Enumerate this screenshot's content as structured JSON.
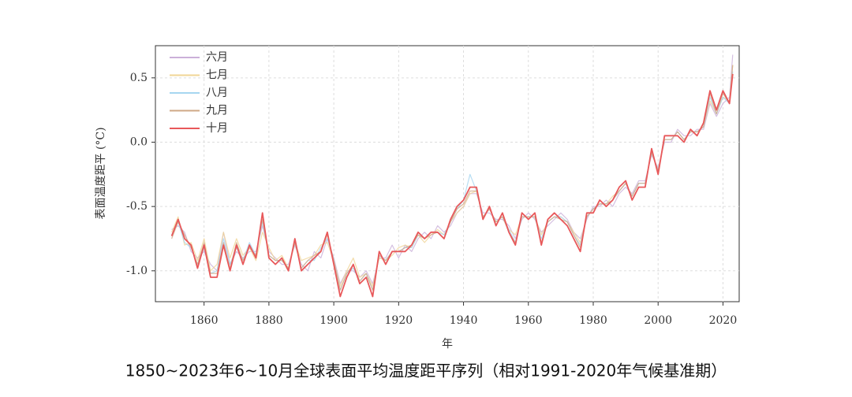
{
  "chart_data": {
    "type": "line",
    "title": "1850~2023年6~10月全球表面平均温度距平序列（相对1991-2020年气候基准期）",
    "xlabel": "年",
    "ylabel": "表面温度距平 (°C)",
    "xlim": [
      1845,
      2025
    ],
    "ylim": [
      -1.24,
      0.75
    ],
    "xticks": [
      1860,
      1880,
      1900,
      1920,
      1940,
      1960,
      1980,
      2000,
      2020
    ],
    "yticks": [
      {
        "value": -1,
        "label": "-1.0"
      },
      -0.5,
      {
        "value": 0,
        "label": "0.0"
      },
      0.5
    ],
    "grid": true,
    "legend": "upper left",
    "x": [
      1850,
      1852,
      1854,
      1856,
      1858,
      1860,
      1862,
      1864,
      1866,
      1868,
      1870,
      1872,
      1874,
      1876,
      1878,
      1880,
      1882,
      1884,
      1886,
      1888,
      1890,
      1892,
      1894,
      1896,
      1898,
      1900,
      1902,
      1904,
      1906,
      1908,
      1910,
      1912,
      1914,
      1916,
      1918,
      1920,
      1922,
      1924,
      1926,
      1928,
      1930,
      1932,
      1934,
      1936,
      1938,
      1940,
      1942,
      1944,
      1946,
      1948,
      1950,
      1952,
      1954,
      1956,
      1958,
      1960,
      1962,
      1964,
      1966,
      1968,
      1970,
      1972,
      1974,
      1976,
      1978,
      1980,
      1982,
      1984,
      1986,
      1988,
      1990,
      1992,
      1994,
      1996,
      1998,
      2000,
      2002,
      2004,
      2006,
      2008,
      2010,
      2012,
      2014,
      2016,
      2018,
      2020,
      2022,
      2023
    ],
    "series": [
      {
        "name": "六月",
        "color": "#cbb0d9",
        "values": [
          -0.68,
          -0.65,
          -0.7,
          -0.85,
          -0.9,
          -0.85,
          -0.95,
          -1.0,
          -0.7,
          -0.95,
          -0.85,
          -0.9,
          -0.85,
          -0.85,
          -0.65,
          -0.85,
          -0.9,
          -0.95,
          -0.95,
          -0.8,
          -0.95,
          -1.0,
          -0.85,
          -0.9,
          -0.75,
          -0.9,
          -1.1,
          -1.0,
          -1.0,
          -1.05,
          -1.0,
          -1.1,
          -0.9,
          -0.9,
          -0.8,
          -0.9,
          -0.8,
          -0.85,
          -0.75,
          -0.7,
          -0.75,
          -0.65,
          -0.7,
          -0.65,
          -0.55,
          -0.5,
          -0.4,
          -0.4,
          -0.55,
          -0.55,
          -0.6,
          -0.6,
          -0.65,
          -0.75,
          -0.6,
          -0.55,
          -0.6,
          -0.7,
          -0.65,
          -0.6,
          -0.55,
          -0.6,
          -0.7,
          -0.75,
          -0.6,
          -0.5,
          -0.5,
          -0.45,
          -0.5,
          -0.4,
          -0.35,
          -0.4,
          -0.3,
          -0.3,
          -0.1,
          -0.2,
          0.0,
          0.0,
          0.1,
          0.05,
          0.05,
          0.1,
          0.1,
          0.3,
          0.2,
          0.3,
          0.35,
          0.68
        ]
      },
      {
        "name": "七月",
        "color": "#f0d596",
        "values": [
          -0.7,
          -0.58,
          -0.8,
          -0.78,
          -0.92,
          -0.75,
          -1.0,
          -0.95,
          -0.7,
          -0.9,
          -0.75,
          -0.88,
          -0.82,
          -0.92,
          -0.7,
          -0.82,
          -0.92,
          -0.88,
          -0.98,
          -0.78,
          -0.92,
          -0.9,
          -0.88,
          -0.8,
          -0.78,
          -0.92,
          -1.12,
          -1.0,
          -0.9,
          -1.05,
          -1.02,
          -1.12,
          -0.9,
          -0.92,
          -0.88,
          -0.82,
          -0.8,
          -0.82,
          -0.72,
          -0.78,
          -0.72,
          -0.68,
          -0.72,
          -0.62,
          -0.55,
          -0.5,
          -0.4,
          -0.38,
          -0.58,
          -0.52,
          -0.62,
          -0.58,
          -0.68,
          -0.72,
          -0.58,
          -0.58,
          -0.58,
          -0.72,
          -0.62,
          -0.58,
          -0.58,
          -0.62,
          -0.7,
          -0.78,
          -0.58,
          -0.52,
          -0.48,
          -0.48,
          -0.42,
          -0.38,
          -0.32,
          -0.42,
          -0.32,
          -0.32,
          -0.08,
          -0.22,
          0.02,
          0.02,
          0.08,
          0.02,
          0.08,
          0.08,
          0.12,
          0.32,
          0.22,
          0.35,
          0.32,
          0.6
        ]
      },
      {
        "name": "八月",
        "color": "#a6d6f0",
        "values": [
          -0.72,
          -0.62,
          -0.78,
          -0.82,
          -0.95,
          -0.82,
          -1.02,
          -1.0,
          -0.75,
          -0.95,
          -0.82,
          -0.92,
          -0.78,
          -0.88,
          -0.62,
          -0.88,
          -0.92,
          -0.92,
          -0.98,
          -0.78,
          -0.98,
          -0.92,
          -0.92,
          -0.82,
          -0.75,
          -0.92,
          -1.15,
          -1.02,
          -0.98,
          -1.08,
          -1.02,
          -1.15,
          -0.88,
          -0.92,
          -0.85,
          -0.85,
          -0.82,
          -0.82,
          -0.72,
          -0.75,
          -0.7,
          -0.7,
          -0.72,
          -0.62,
          -0.52,
          -0.45,
          -0.25,
          -0.38,
          -0.58,
          -0.52,
          -0.62,
          -0.58,
          -0.68,
          -0.78,
          -0.58,
          -0.58,
          -0.58,
          -0.75,
          -0.62,
          -0.58,
          -0.58,
          -0.62,
          -0.72,
          -0.8,
          -0.58,
          -0.52,
          -0.48,
          -0.48,
          -0.45,
          -0.38,
          -0.32,
          -0.42,
          -0.32,
          -0.32,
          -0.08,
          -0.22,
          0.02,
          0.02,
          0.08,
          0.02,
          0.08,
          0.08,
          0.12,
          0.35,
          0.22,
          0.35,
          0.3,
          0.55
        ]
      },
      {
        "name": "九月",
        "color": "#cfa886",
        "values": [
          -0.75,
          -0.62,
          -0.72,
          -0.82,
          -0.95,
          -0.78,
          -1.02,
          -1.02,
          -0.78,
          -0.98,
          -0.78,
          -0.92,
          -0.82,
          -0.88,
          -0.6,
          -0.88,
          -0.92,
          -0.92,
          -0.98,
          -0.78,
          -0.98,
          -0.92,
          -0.88,
          -0.85,
          -0.72,
          -0.92,
          -1.15,
          -1.02,
          -0.95,
          -1.08,
          -1.02,
          -1.15,
          -0.88,
          -0.92,
          -0.85,
          -0.85,
          -0.82,
          -0.8,
          -0.72,
          -0.75,
          -0.72,
          -0.7,
          -0.75,
          -0.62,
          -0.52,
          -0.48,
          -0.38,
          -0.38,
          -0.58,
          -0.52,
          -0.62,
          -0.58,
          -0.7,
          -0.78,
          -0.58,
          -0.58,
          -0.58,
          -0.78,
          -0.62,
          -0.58,
          -0.6,
          -0.62,
          -0.72,
          -0.82,
          -0.58,
          -0.52,
          -0.48,
          -0.48,
          -0.45,
          -0.38,
          -0.32,
          -0.42,
          -0.32,
          -0.32,
          -0.08,
          -0.22,
          0.02,
          0.02,
          0.08,
          0.02,
          0.08,
          0.08,
          0.12,
          0.38,
          0.22,
          0.38,
          0.3,
          0.6
        ]
      },
      {
        "name": "十月",
        "color": "#e8585a",
        "values": [
          -0.73,
          -0.6,
          -0.75,
          -0.8,
          -0.98,
          -0.8,
          -1.05,
          -1.05,
          -0.8,
          -1.0,
          -0.8,
          -0.95,
          -0.8,
          -0.9,
          -0.55,
          -0.9,
          -0.95,
          -0.9,
          -1.0,
          -0.75,
          -1.0,
          -0.95,
          -0.9,
          -0.85,
          -0.7,
          -0.95,
          -1.2,
          -1.05,
          -0.95,
          -1.1,
          -1.05,
          -1.2,
          -0.85,
          -0.95,
          -0.85,
          -0.85,
          -0.85,
          -0.8,
          -0.7,
          -0.75,
          -0.7,
          -0.7,
          -0.75,
          -0.6,
          -0.5,
          -0.45,
          -0.35,
          -0.35,
          -0.6,
          -0.5,
          -0.65,
          -0.55,
          -0.7,
          -0.8,
          -0.55,
          -0.6,
          -0.55,
          -0.8,
          -0.6,
          -0.55,
          -0.6,
          -0.65,
          -0.75,
          -0.85,
          -0.55,
          -0.55,
          -0.45,
          -0.5,
          -0.45,
          -0.35,
          -0.3,
          -0.45,
          -0.35,
          -0.35,
          -0.05,
          -0.25,
          0.05,
          0.05,
          0.05,
          0.0,
          0.1,
          0.05,
          0.15,
          0.4,
          0.25,
          0.4,
          0.3,
          0.53
        ]
      }
    ]
  }
}
